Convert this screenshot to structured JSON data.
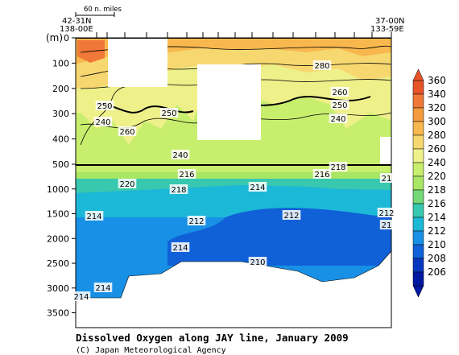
{
  "chart_data": {
    "type": "heatmap",
    "title": "Dissolved Oxygen along JAY line, January 2009",
    "credit": "(C) Japan Meteorological Agency",
    "scale_bar_label": "60 n. miles",
    "ylabel": "(m)",
    "left_station": {
      "lat": "42-31N",
      "lon": "138-00E"
    },
    "right_station": {
      "lat": "37-00N",
      "lon": "133-59E"
    },
    "upper_panel": {
      "depth_range": [
        0,
        500
      ],
      "ticks": [
        "0",
        "100",
        "200",
        "300",
        "400",
        "500"
      ]
    },
    "lower_panel": {
      "depth_range": [
        500,
        3800
      ],
      "ticks": [
        "1000",
        "1500",
        "2000",
        "2500",
        "3000",
        "3500"
      ]
    },
    "colorbar": {
      "levels": [
        "360",
        "340",
        "320",
        "300",
        "280",
        "260",
        "240",
        "220",
        "218",
        "216",
        "214",
        "212",
        "210",
        "208",
        "206"
      ],
      "colors": [
        "#e8542a",
        "#f07838",
        "#f59a3c",
        "#f8b84e",
        "#f7d870",
        "#eef08a",
        "#c8ee6e",
        "#a8e664",
        "#74d878",
        "#38c8b0",
        "#1cb8d8",
        "#1890e6",
        "#1060d8",
        "#0838c0",
        "#0018a0"
      ]
    },
    "contour_labels": [
      {
        "text": "280"
      },
      {
        "text": "260"
      },
      {
        "text": "250"
      },
      {
        "text": "250"
      },
      {
        "text": "250"
      },
      {
        "text": "240"
      },
      {
        "text": "240"
      },
      {
        "text": "260"
      },
      {
        "text": "240"
      },
      {
        "text": "218"
      },
      {
        "text": "216"
      },
      {
        "text": "216"
      },
      {
        "text": "220"
      },
      {
        "text": "218"
      },
      {
        "text": "214"
      },
      {
        "text": "214"
      },
      {
        "text": "212"
      },
      {
        "text": "212"
      },
      {
        "text": "214"
      },
      {
        "text": "210"
      },
      {
        "text": "214"
      },
      {
        "text": "214"
      },
      {
        "text": "212"
      },
      {
        "text": "21"
      },
      {
        "text": "21"
      }
    ]
  }
}
